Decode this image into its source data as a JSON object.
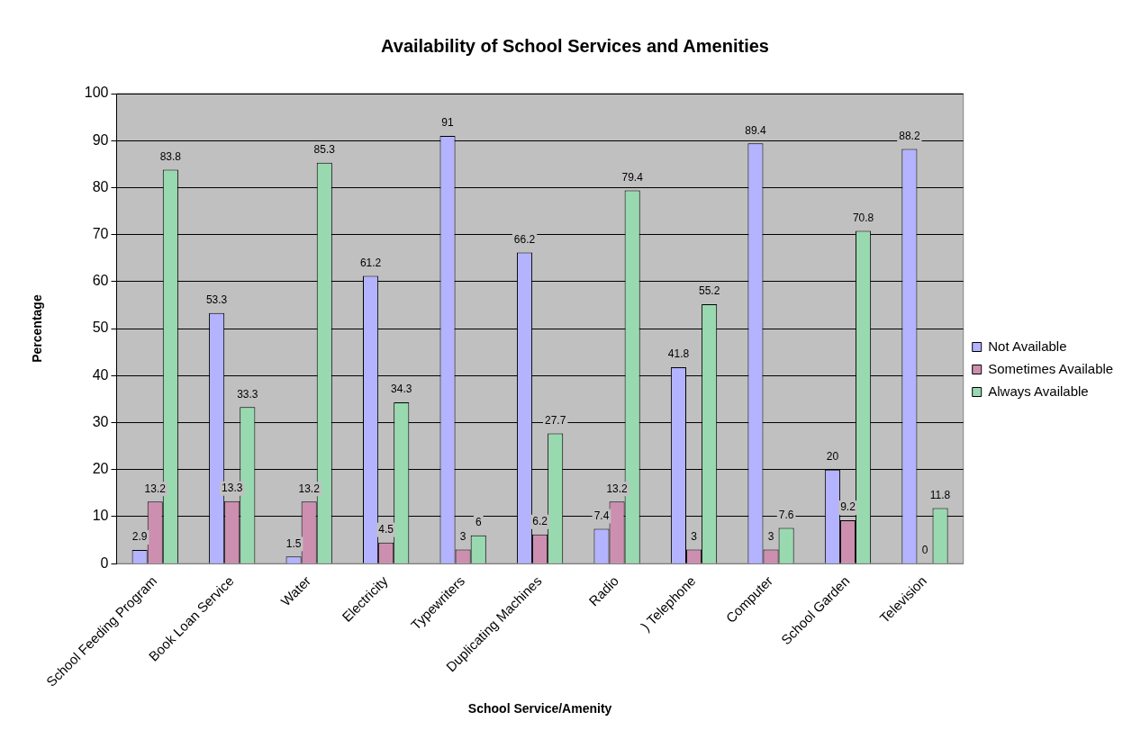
{
  "chart_data": {
    "type": "bar",
    "title": "Availability of School Services and Amenities",
    "xlabel": "School Service/Amenity",
    "ylabel": "Percentage",
    "categories": [
      "School Feeding Program",
      "Book Loan Service",
      "Water",
      "Electricity",
      "Typewriters",
      "Duplicating Machines",
      "Radio",
      ") Telephone",
      "Computer",
      "School Garden",
      "Television"
    ],
    "series": [
      {
        "name": "Not Available",
        "color": "#b3b3ff",
        "values": [
          2.9,
          53.3,
          1.5,
          61.2,
          91,
          66.2,
          7.4,
          41.8,
          89.4,
          20,
          88.2
        ]
      },
      {
        "name": "Sometimes Available",
        "color": "#cc8fb0",
        "values": [
          13.2,
          13.3,
          13.2,
          4.5,
          3,
          6.2,
          13.2,
          3,
          3,
          9.2,
          0
        ]
      },
      {
        "name": "Always Available",
        "color": "#99d9b0",
        "values": [
          83.8,
          33.3,
          85.3,
          34.3,
          6,
          27.7,
          79.4,
          55.2,
          7.6,
          70.8,
          11.8
        ]
      }
    ],
    "ylim": [
      0,
      100
    ],
    "yticks": [
      0,
      10,
      20,
      30,
      40,
      50,
      60,
      70,
      80,
      90,
      100
    ],
    "grid": "y",
    "legend": "right",
    "data_labels": true
  }
}
